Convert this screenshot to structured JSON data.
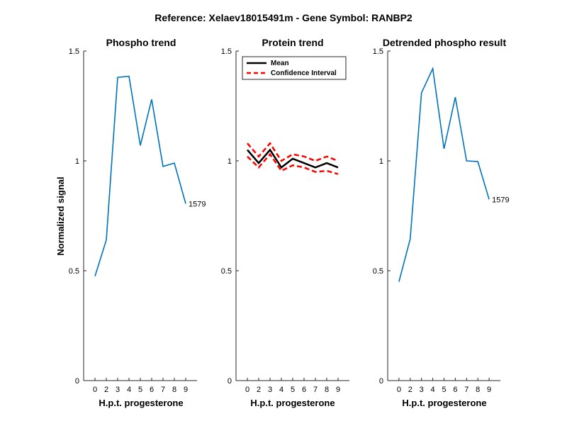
{
  "figure": {
    "title": "Reference:  Xelaev18015491m - Gene Symbol:  RANBP2"
  },
  "chart_data": [
    {
      "type": "line",
      "title": "Phospho trend",
      "xlabel": "H.p.t. progesterone",
      "ylabel": "Normalized signal",
      "x": [
        "0",
        "2",
        "3",
        "4",
        "5",
        "6",
        "7",
        "8",
        "9"
      ],
      "ylim": [
        0,
        1.5
      ],
      "yticks": [
        "0",
        "0.5",
        "1",
        "1.5"
      ],
      "series": [
        {
          "values": [
            0.475,
            0.64,
            1.38,
            1.385,
            1.07,
            1.28,
            0.975,
            0.99,
            0.805
          ],
          "color": "#0072BD"
        }
      ],
      "annotation": "1579"
    },
    {
      "type": "line",
      "title": "Protein trend",
      "xlabel": "H.p.t. progesterone",
      "ylabel": "",
      "x": [
        "0",
        "2",
        "3",
        "4",
        "5",
        "6",
        "7",
        "8",
        "9"
      ],
      "ylim": [
        0,
        1.5
      ],
      "yticks": [
        "0",
        "0.5",
        "1",
        "1.5"
      ],
      "legend_position": "top-right",
      "series": [
        {
          "name": "Mean",
          "values": [
            1.05,
            0.99,
            1.05,
            0.97,
            1.01,
            0.99,
            0.97,
            0.99,
            0.97
          ],
          "color": "#000000",
          "style": "solid"
        },
        {
          "name": "Confidence Interval",
          "values": [
            1.08,
            1.02,
            1.08,
            1.0,
            1.03,
            1.02,
            1.0,
            1.02,
            1.0
          ],
          "color": "#FF0000",
          "style": "dashed"
        },
        {
          "values": [
            1.02,
            0.97,
            1.03,
            0.955,
            0.98,
            0.97,
            0.95,
            0.955,
            0.94
          ],
          "color": "#FF0000",
          "style": "dashed"
        }
      ]
    },
    {
      "type": "line",
      "title": "Detrended phospho result",
      "xlabel": "H.p.t. progesterone",
      "ylabel": "",
      "x": [
        "0",
        "2",
        "3",
        "4",
        "5",
        "6",
        "7",
        "8",
        "9"
      ],
      "ylim": [
        0,
        1.5
      ],
      "yticks": [
        "0",
        "0.5",
        "1",
        "1.5"
      ],
      "series": [
        {
          "values": [
            0.45,
            0.645,
            1.31,
            1.42,
            1.055,
            1.29,
            1.0,
            0.997,
            0.825
          ],
          "color": "#0072BD"
        }
      ],
      "annotation": "1579"
    }
  ]
}
